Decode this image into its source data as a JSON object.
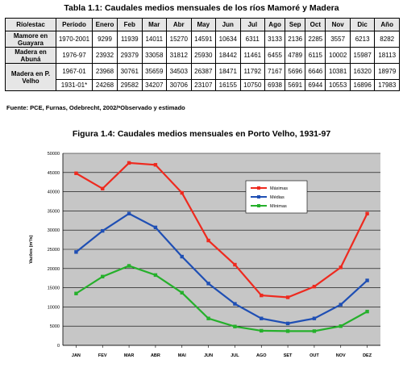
{
  "table": {
    "title": "Tabla 1.1: Caudales medios mensuales de los ríos Mamoré y Madera",
    "headers": [
      "Río/estac",
      "Período",
      "Enero",
      "Feb",
      "Mar",
      "Abr",
      "May",
      "Jun",
      "Jul",
      "Ago",
      "Sep",
      "Oct",
      "Nov",
      "Dic",
      "Año"
    ],
    "rows": [
      {
        "station": "Mamore en Guayara",
        "cells": [
          "1970-2001",
          "9299",
          "11939",
          "14011",
          "15270",
          "14591",
          "10634",
          "6311",
          "3133",
          "2136",
          "2285",
          "3557",
          "6213",
          "8282"
        ]
      },
      {
        "station": "Madera en Abuná",
        "cells": [
          "1976-97",
          "23932",
          "29379",
          "33058",
          "31812",
          "25930",
          "18442",
          "11461",
          "6455",
          "4789",
          "6115",
          "10002",
          "15987",
          "18113"
        ]
      },
      {
        "station": "Madera en P. Velho",
        "cells": [
          "1967-01",
          "23968",
          "30761",
          "35659",
          "34503",
          "26387",
          "18471",
          "11792",
          "7167",
          "5696",
          "6646",
          "10381",
          "16320",
          "18979"
        ]
      },
      {
        "station": "",
        "cells": [
          "1931-01*",
          "24268",
          "29582",
          "34207",
          "30706",
          "23107",
          "16155",
          "10750",
          "6938",
          "5691",
          "6944",
          "10553",
          "16896",
          "17983"
        ]
      }
    ],
    "source": "Fuente: PCE, Furnas, Odebrecht, 2002/*Observado y estimado"
  },
  "figure": {
    "title": "Figura 1.4: Caudales medios mensuales en Porto Velho, 1931-97"
  },
  "chart_data": {
    "type": "line",
    "title": "Figura 1.4: Caudales medios mensuales en Porto Velho, 1931-97",
    "xlabel": "",
    "ylabel": "Vazões (m³/s)",
    "categories": [
      "JAN",
      "FEV",
      "MAR",
      "ABR",
      "MAI",
      "JUN",
      "JUL",
      "AGO",
      "SET",
      "OUT",
      "NOV",
      "DEZ"
    ],
    "ylim": [
      0,
      50000
    ],
    "yticks": [
      0,
      5000,
      10000,
      15000,
      20000,
      25000,
      30000,
      35000,
      40000,
      45000,
      50000
    ],
    "grid": true,
    "legend_position": "top-right",
    "series": [
      {
        "name": "Máximas",
        "color": "#ee2a1f",
        "values": [
          44800,
          40800,
          47500,
          47000,
          39700,
          27300,
          21000,
          13000,
          12500,
          15300,
          20300,
          34300
        ]
      },
      {
        "name": "Médias",
        "color": "#1f4fb4",
        "values": [
          24300,
          29800,
          34300,
          30700,
          23100,
          16100,
          10800,
          7000,
          5700,
          7000,
          10600,
          16900
        ]
      },
      {
        "name": "Mínimas",
        "color": "#25b02b",
        "values": [
          13500,
          17900,
          20700,
          18300,
          13700,
          7000,
          4900,
          3800,
          3700,
          3700,
          5000,
          8800
        ]
      }
    ]
  }
}
